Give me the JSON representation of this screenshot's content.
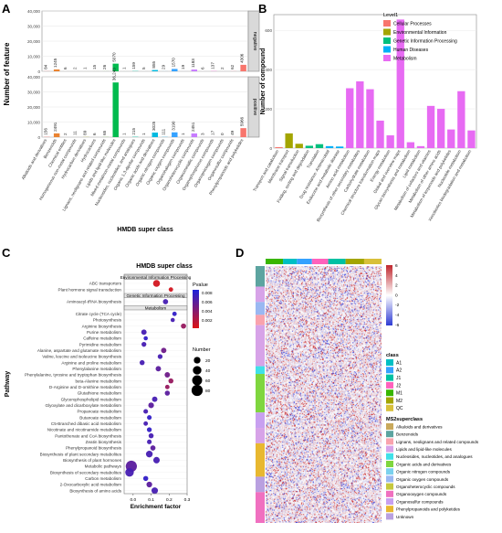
{
  "chart_data": [
    {
      "panel": "A",
      "type": "bar",
      "xlabel": "HMDB super class",
      "ylabel": "Number of feature",
      "facets": [
        "negative",
        "positive"
      ],
      "ylim_negative": [
        0,
        40000
      ],
      "ylim_positive": [
        0,
        40000
      ],
      "yticks": [
        "0",
        "10,000",
        "20,000",
        "30,000",
        "40,000"
      ],
      "categories": [
        "Alkaloids and derivatives",
        "Benzenoids",
        "Chemical entities",
        "Homogeneous non-metal compounds",
        "Hydrocarbon derivatives",
        "Hydrocarbons",
        "Lignans, neolignans and related compounds",
        "Lipids and lipid-like molecules",
        "Mixed metal/non-metal compounds",
        "Nucleosides, nucleotides, and analogues",
        "Organic 1,3-dipolar compounds",
        "Organic acids and derivatives",
        "Organic nitrogen compounds",
        "Organic oxygen compounds",
        "Organohalogen compounds",
        "Organoheterocyclic compounds",
        "Organometallic compounds",
        "Organophosphorus compounds",
        "Organopnictogen compounds",
        "Organosulfur compounds",
        "Phenylpropanoids and polyketides"
      ],
      "colors": [
        "#f8766d",
        "#ea8331",
        "#d89000",
        "#c09b00",
        "#a3a500",
        "#7cae00",
        "#39b600",
        "#00bb4e",
        "#00bf7d",
        "#00c1a3",
        "#00bfc4",
        "#00bae0",
        "#00b0f6",
        "#35a2ff",
        "#9590ff",
        "#c77cff",
        "#e76bf3",
        "#fa62db",
        "#ff62bc",
        "#ff6c91",
        "#f8766d"
      ],
      "series": [
        {
          "name": "negative",
          "values": [
            84,
            1245,
            6,
            2,
            1,
            15,
            26,
            5070,
            1,
            159,
            5,
            855,
            29,
            1570,
            19,
            1183,
            6,
            137,
            2,
            62,
            4306
          ],
          "labels": [
            "84",
            "1245",
            "6",
            "2",
            "1",
            "15",
            "26",
            "5070",
            "1",
            "159",
            "5",
            "855",
            "29",
            "1570",
            "19",
            "1183",
            "6",
            "137",
            "2",
            "62",
            "4306"
          ]
        },
        {
          "name": "positive",
          "values": [
            156,
            2491,
            2,
            11,
            89,
            6,
            65,
            36243,
            1,
            215,
            1,
            3025,
            111,
            3190,
            1,
            2451,
            3,
            17,
            0,
            49,
            5966
          ],
          "labels": [
            "156",
            "2491",
            "2",
            "11",
            "89",
            "6",
            "65",
            "36,243",
            "1",
            "215",
            "1",
            "3025",
            "111",
            "3190",
            "1",
            "2451",
            "3",
            "17",
            "0",
            "49",
            "5966"
          ]
        }
      ]
    },
    {
      "panel": "B",
      "type": "bar",
      "ylabel": "Number of compound",
      "ylim": [
        0,
        600
      ],
      "yticks": [
        "0",
        "200",
        "400",
        "600"
      ],
      "legend_title": "Level1",
      "legend_position": "top-right",
      "legend": [
        {
          "name": "Cellular Processes",
          "color": "#f8766d"
        },
        {
          "name": "Environmental Information",
          "color": "#a3a500"
        },
        {
          "name": "Genetic Information Processing",
          "color": "#00bf7d"
        },
        {
          "name": "Human Diseases",
          "color": "#00b0f6"
        },
        {
          "name": "Metabolism",
          "color": "#e76bf3"
        }
      ],
      "categories": [
        "Transport and catabolism",
        "Membrane transport",
        "Signal transduction",
        "Folding, sorting and degradation",
        "Translation",
        "Drug resistance: Antimicrobial",
        "Endocrine and metabolic disease",
        "Amino acid metabolism",
        "Biosynthesis of other secondary metabolites",
        "Carbohydrate metabolism",
        "Chemical structure transformation maps",
        "Energy metabolism",
        "Global and overview maps",
        "Glycan biosynthesis and metabolism",
        "Lipid metabolism",
        "Metabolism of cofactors and vitamins",
        "Metabolism of other amino acids",
        "Metabolism of terpenoids and polyketides",
        "Nucleotide metabolism",
        "Xenobiotics biodegradation and metabolism"
      ],
      "values": [
        5,
        75,
        22,
        12,
        20,
        10,
        8,
        305,
        340,
        300,
        140,
        65,
        655,
        30,
        10,
        215,
        200,
        95,
        290,
        90
      ],
      "bar_level": [
        "Cellular Processes",
        "Environmental Information",
        "Environmental Information",
        "Genetic Information Processing",
        "Genetic Information Processing",
        "Human Diseases",
        "Human Diseases",
        "Metabolism",
        "Metabolism",
        "Metabolism",
        "Metabolism",
        "Metabolism",
        "Metabolism",
        "Metabolism",
        "Metabolism",
        "Metabolism",
        "Metabolism",
        "Metabolism",
        "Metabolism",
        "Metabolism"
      ]
    },
    {
      "panel": "C",
      "type": "scatter",
      "xlabel": "Enrichment factor",
      "ylabel": "Pathway",
      "xlim": [
        -0.05,
        0.3
      ],
      "xticks": [
        "0.0",
        "0.1",
        "0.2",
        "0.3"
      ],
      "legend_pvalue_title": "Pvalue",
      "legend_pvalue_ticks": [
        "0.008",
        "0.006",
        "0.004",
        "0.002"
      ],
      "legend_number_title": "Number",
      "legend_number_values": [
        20,
        40,
        60,
        80
      ],
      "groups": [
        {
          "name": "Environmental Information Processing",
          "pathways": [
            {
              "name": "ABC transporters",
              "x": 0.13,
              "n": 22,
              "p": 0.001
            },
            {
              "name": "Plant hormone signal transduction",
              "x": 0.21,
              "n": 5,
              "p": 0.001
            }
          ]
        },
        {
          "name": "Genetic Information Processing",
          "pathways": [
            {
              "name": "Aminoacyl-tRNA biosynthesis",
              "x": 0.18,
              "n": 9,
              "p": 0.008
            }
          ]
        },
        {
          "name": "Metabolism",
          "pathways": [
            {
              "name": "Citrate cycle (TCA cycle)",
              "x": 0.23,
              "n": 5,
              "p": 0.009
            },
            {
              "name": "Photosynthesis",
              "x": 0.22,
              "n": 4,
              "p": 0.008
            },
            {
              "name": "Arginine biosynthesis",
              "x": 0.28,
              "n": 9,
              "p": 0.004
            },
            {
              "name": "Purine metabolism",
              "x": 0.06,
              "n": 10,
              "p": 0.008
            },
            {
              "name": "Caffeine metabolism",
              "x": 0.07,
              "n": 4,
              "p": 0.009
            },
            {
              "name": "Pyrimidine metabolism",
              "x": 0.06,
              "n": 7,
              "p": 0.008
            },
            {
              "name": "Alanine, aspartate and glutamate metabolism",
              "x": 0.17,
              "n": 10,
              "p": 0.006
            },
            {
              "name": "Valine, leucine and isoleucine biosynthesis",
              "x": 0.15,
              "n": 7,
              "p": 0.008
            },
            {
              "name": "Arginine and proline metabolism",
              "x": 0.05,
              "n": 8,
              "p": 0.008
            },
            {
              "name": "Phenylalanine metabolism",
              "x": 0.14,
              "n": 10,
              "p": 0.007
            },
            {
              "name": "Phenylalanine, tyrosine and tryptophan biosynthesis",
              "x": 0.19,
              "n": 10,
              "p": 0.006
            },
            {
              "name": "beta-Alanine metabolism",
              "x": 0.21,
              "n": 8,
              "p": 0.004
            },
            {
              "name": "D-Arginine and D-ornithine metabolism",
              "x": 0.19,
              "n": 5,
              "p": 0.004
            },
            {
              "name": "Glutathione metabolism",
              "x": 0.19,
              "n": 8,
              "p": 0.007
            },
            {
              "name": "Glycerophospholipid metabolism",
              "x": 0.12,
              "n": 10,
              "p": 0.008
            },
            {
              "name": "Glyoxylate and dicarboxylate metabolism",
              "x": 0.1,
              "n": 12,
              "p": 0.007
            },
            {
              "name": "Propanoate metabolism",
              "x": 0.07,
              "n": 6,
              "p": 0.008
            },
            {
              "name": "Butanoate metabolism",
              "x": 0.09,
              "n": 6,
              "p": 0.009
            },
            {
              "name": "C5-Branched dibasic acid metabolism",
              "x": 0.07,
              "n": 5,
              "p": 0.008
            },
            {
              "name": "Nicotinate and nicotinamide metabolism",
              "x": 0.09,
              "n": 7,
              "p": 0.009
            },
            {
              "name": "Pantothenate and CoA biosynthesis",
              "x": 0.1,
              "n": 8,
              "p": 0.008
            },
            {
              "name": "Zeatin biosynthesis",
              "x": 0.09,
              "n": 6,
              "p": 0.008
            },
            {
              "name": "Phenylpropanoid biosynthesis",
              "x": 0.11,
              "n": 9,
              "p": 0.007
            },
            {
              "name": "Biosynthesis of plant secondary metabolites",
              "x": 0.09,
              "n": 20,
              "p": 0.008
            },
            {
              "name": "Biosynthesis of plant hormones",
              "x": 0.13,
              "n": 18,
              "p": 0.008
            },
            {
              "name": "Metabolic pathways",
              "x": -0.01,
              "n": 80,
              "p": 0.007
            },
            {
              "name": "Biosynthesis of secondary metabolites",
              "x": -0.02,
              "n": 40,
              "p": 0.008
            },
            {
              "name": "Carbon metabolism",
              "x": 0.07,
              "n": 8,
              "p": 0.009
            },
            {
              "name": "2-Oxocarboxylic acid metabolism",
              "x": 0.09,
              "n": 12,
              "p": 0.007
            },
            {
              "name": "Biosynthesis of amino acids",
              "x": 0.12,
              "n": 18,
              "p": 0.008
            }
          ]
        }
      ]
    },
    {
      "panel": "D",
      "type": "heatmap",
      "color_scale_ticks": [
        "6",
        "4",
        "2",
        "0",
        "-2",
        "-4",
        "-6"
      ],
      "color_scale_range": [
        -6,
        6
      ],
      "class_legend_title": "class",
      "class_legend": [
        {
          "name": "A1",
          "color": "#00bfc4"
        },
        {
          "name": "A2",
          "color": "#35a2ff"
        },
        {
          "name": "J1",
          "color": "#00c1a3"
        },
        {
          "name": "J2",
          "color": "#ff62bc"
        },
        {
          "name": "M1",
          "color": "#39b600"
        },
        {
          "name": "M2",
          "color": "#a3a500"
        },
        {
          "name": "QC",
          "color": "#d8c03a"
        }
      ],
      "superclass_legend_title": "MS2superclass",
      "superclass_legend": [
        {
          "name": "Alkaloids and derivatives",
          "color": "#c9a95c"
        },
        {
          "name": "Benzenoids",
          "color": "#5da4a0"
        },
        {
          "name": "Lignans, neolignans and related compounds",
          "color": "#f9a3ad"
        },
        {
          "name": "Lipids and lipid-like molecules",
          "color": "#d7a3e8"
        },
        {
          "name": "Nucleosides, nucleotides, and analogues",
          "color": "#40e0e8"
        },
        {
          "name": "Organic acids and derivatives",
          "color": "#7fd63f"
        },
        {
          "name": "Organic nitrogen compounds",
          "color": "#7bd1ee"
        },
        {
          "name": "Organic oxygen compounds",
          "color": "#9ab8f2"
        },
        {
          "name": "Organoheterocyclic compounds",
          "color": "#c6c83e"
        },
        {
          "name": "Organooxygen compounds",
          "color": "#f070c0"
        },
        {
          "name": "Organosulfur compounds",
          "color": "#c8a0f0"
        },
        {
          "name": "Phenylpropanoids and polyketides",
          "color": "#e8b830"
        },
        {
          "name": "Unknown",
          "color": "#b9a0e0"
        }
      ]
    }
  ],
  "panel_labels": [
    "A",
    "B",
    "C",
    "D"
  ]
}
